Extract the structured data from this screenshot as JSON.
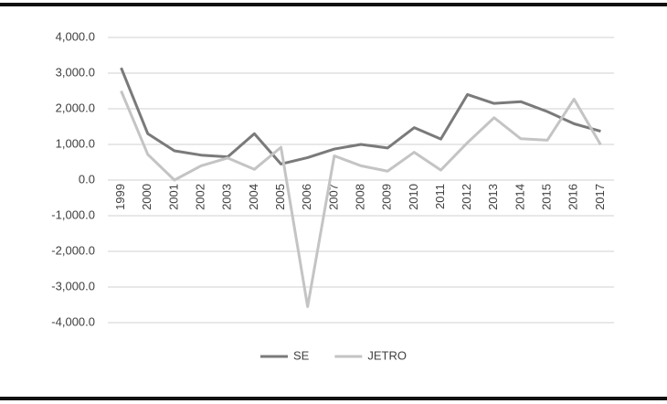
{
  "chart_data": {
    "type": "line",
    "categories": [
      "1999",
      "2000",
      "2001",
      "2002",
      "2003",
      "2004",
      "2005",
      "2006",
      "2007",
      "2008",
      "2009",
      "2010",
      "2011",
      "2012",
      "2013",
      "2014",
      "2015",
      "2016",
      "2017"
    ],
    "series": [
      {
        "name": "SE",
        "color": "#7a7a7a",
        "values": [
          3150,
          1300,
          820,
          700,
          650,
          1300,
          450,
          630,
          870,
          1000,
          900,
          1470,
          1150,
          2400,
          2150,
          2200,
          1920,
          1580,
          1370
        ]
      },
      {
        "name": "JETRO",
        "color": "#c4c4c4",
        "values": [
          2500,
          720,
          0,
          400,
          620,
          300,
          920,
          -3550,
          680,
          400,
          250,
          780,
          280,
          1050,
          1750,
          1160,
          1120,
          2270,
          990
        ]
      }
    ],
    "ylim": [
      -4000,
      4000
    ],
    "yticks": [
      {
        "value": -4000,
        "label": "-4,000.0"
      },
      {
        "value": -3000,
        "label": "-3,000.0"
      },
      {
        "value": -2000,
        "label": "-2,000.0"
      },
      {
        "value": -1000,
        "label": "-1,000.0"
      },
      {
        "value": 0,
        "label": "0.0"
      },
      {
        "value": 1000,
        "label": "1,000.0"
      },
      {
        "value": 2000,
        "label": "2,000.0"
      },
      {
        "value": 3000,
        "label": "3,000.0"
      },
      {
        "value": 4000,
        "label": "4,000.0"
      }
    ],
    "grid": true,
    "legend": "bottom"
  }
}
